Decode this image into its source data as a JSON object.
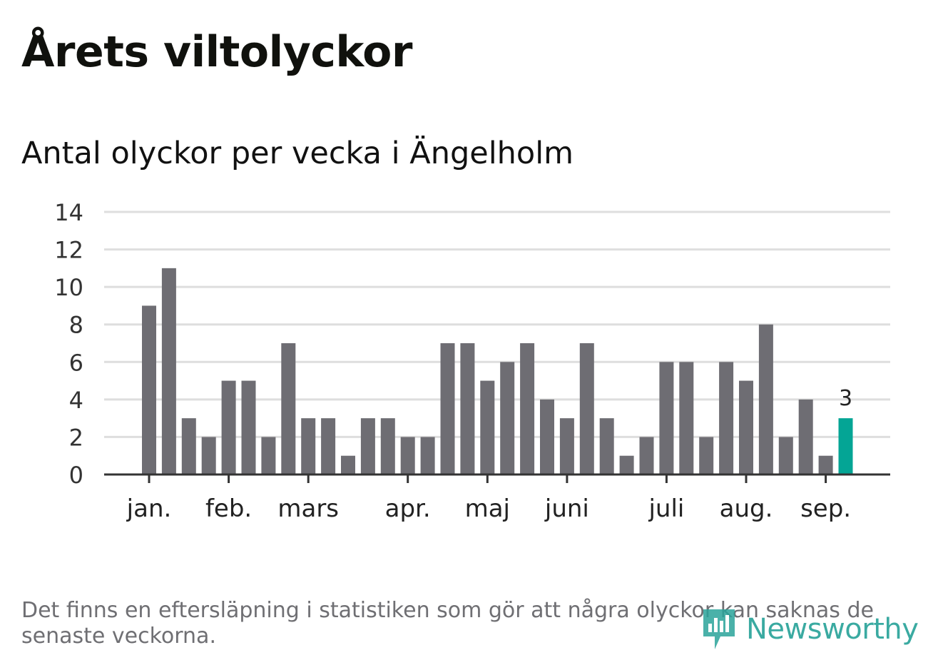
{
  "header": {
    "title": "Årets viltolyckor",
    "subtitle": "Antal olyckor per vecka i Ängelholm"
  },
  "chart_data": {
    "type": "bar",
    "title": "Antal olyckor per vecka i Ängelholm",
    "xlabel": "",
    "ylabel": "",
    "ylim": [
      0,
      14
    ],
    "yticks": [
      "0",
      "2",
      "4",
      "6",
      "8",
      "10",
      "12",
      "14"
    ],
    "grid": true,
    "month_labels": [
      "jan.",
      "feb.",
      "mars",
      "apr.",
      "maj",
      "juni",
      "juli",
      "aug.",
      "sep."
    ],
    "month_label_bar_index": [
      0,
      4,
      8,
      13,
      17,
      21,
      26,
      30,
      34
    ],
    "values": [
      9,
      11,
      3,
      2,
      5,
      5,
      2,
      7,
      3,
      3,
      1,
      3,
      3,
      2,
      2,
      7,
      7,
      5,
      6,
      7,
      4,
      3,
      7,
      3,
      1,
      2,
      6,
      6,
      2,
      6,
      5,
      8,
      2,
      4,
      1,
      3
    ],
    "highlight_index": 35,
    "highlight_label": "3",
    "colors": {
      "bar": "#6e6d73",
      "highlight": "#04a595",
      "grid": "#dedede",
      "axis": "#333333"
    }
  },
  "footnote": "Det finns en eftersläpning i statistiken som gör att några olyckor kan saknas de senaste veckorna.",
  "logo": {
    "text": "Newsworthy",
    "icon": "newsworthy-logo-icon",
    "color": "#2aa39a"
  }
}
